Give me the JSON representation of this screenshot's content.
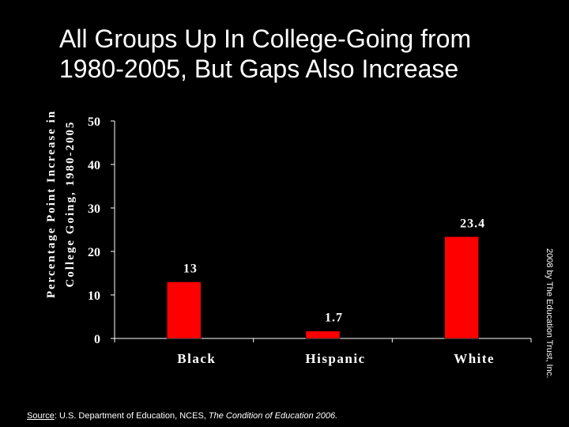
{
  "slide": {
    "title_lines": [
      "All Groups Up In College-Going from",
      "1980-2005, But Gaps Also Increase"
    ],
    "copyright": "2008 by The Education Trust, Inc.",
    "source_label": "Source",
    "source_text": ": U.S. Department of Education, NCES, ",
    "source_publication": "The Condition of Education 2006."
  },
  "colors": {
    "background": "#000000",
    "bar": "#ff0000",
    "text": "#ffffff"
  },
  "chart_data": {
    "type": "bar",
    "title": "",
    "ylabel_lines": [
      "Percentage Point Increase in",
      "College Going, 1980-2005"
    ],
    "xlabel": "",
    "categories": [
      "Black",
      "Hispanic",
      "White"
    ],
    "values": [
      13,
      1.7,
      23.4
    ],
    "data_labels": [
      "13",
      "1.7",
      "23.4"
    ],
    "ylim": [
      0,
      50
    ],
    "yticks": [
      0,
      10,
      20,
      30,
      40,
      50
    ],
    "grid": false,
    "legend": "none"
  }
}
